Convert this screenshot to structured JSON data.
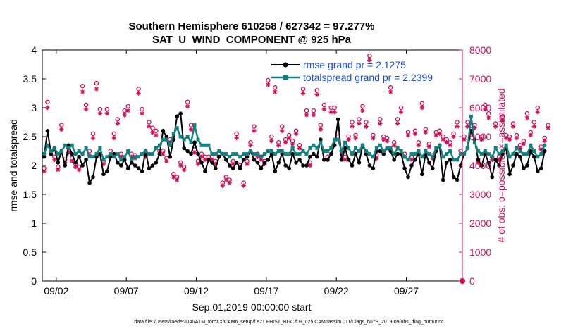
{
  "chart_data": {
    "type": "line",
    "title_line1": "Southern Hemisphere 610258 / 627342 = 97.277%",
    "title_line2": "SAT_U_WIND_COMPONENT @ 925 hPa",
    "xlabel": "Sep.01,2019 00:00:00 start",
    "ylabel_left": "rmse and totalspread",
    "ylabel_right": "# of obs: o=possible; ×=assimilated",
    "footnote": "data file: /Users/raeder/DAI/ATM_forcXX/CAM6_setup/f.e21.FHIST_BGC.f09_025.CAM6assim.011/Diags_NTrS_2019-09/obs_diag_output.nc",
    "x_ticks": [
      "09/02",
      "09/07",
      "09/12",
      "09/17",
      "09/22",
      "09/27"
    ],
    "x_tick_days": [
      2,
      7,
      12,
      17,
      22,
      27
    ],
    "xlim_days": [
      1,
      31
    ],
    "left_ylim": [
      0,
      4
    ],
    "left_ticks": [
      "0",
      "0.5",
      "1",
      "1.5",
      "2",
      "2.5",
      "3",
      "3.5",
      "4"
    ],
    "right_ylim": [
      0,
      8000
    ],
    "right_ticks": [
      "0",
      "1000",
      "2000",
      "3000",
      "4000",
      "5000",
      "6000",
      "7000",
      "8000"
    ],
    "colors": {
      "rmse": "#000000",
      "spread": "#118080",
      "obs": "#d0105a",
      "legend_text": "#1a4fd6"
    },
    "legend": [
      {
        "label": "rmse grand pr = 2.1275"
      },
      {
        "label": "totalspread grand pr = 2.2399"
      }
    ],
    "series": [
      {
        "name": "rmse",
        "x_start_day": 1.125,
        "x_step_days": 0.25,
        "values": [
          2.15,
          2.6,
          2.2,
          2.3,
          2.05,
          2.25,
          2.0,
          2.35,
          2.2,
          2.05,
          2.15,
          2.0,
          2.1,
          1.7,
          1.8,
          2.15,
          2.2,
          1.85,
          1.9,
          2.15,
          2.2,
          2.05,
          2.0,
          2.1,
          1.95,
          2.05,
          2.0,
          1.95,
          1.9,
          2.25,
          1.95,
          2.0,
          2.05,
          2.2,
          2.6,
          2.5,
          2.15,
          2.45,
          2.85,
          2.9,
          2.3,
          2.25,
          2.2,
          2.4,
          2.2,
          2.05,
          1.9,
          2.1,
          2.05,
          1.95,
          2.15,
          2.2,
          2.1,
          2.0,
          1.95,
          2.05,
          1.95,
          2.1,
          2.15,
          2.25,
          2.1,
          2.05,
          1.95,
          2.05,
          2.1,
          2.2,
          1.9,
          2.05,
          2.2,
          2.0,
          1.95,
          2.2,
          2.05,
          2.1,
          2.0,
          2.0,
          2.15,
          2.2,
          2.15,
          2.45,
          2.1,
          2.1,
          2.2,
          2.35,
          2.8,
          2.1,
          2.3,
          2.1,
          2.0,
          2.2,
          2.05,
          2.35,
          2.2,
          2.0,
          1.95,
          2.25,
          2.25,
          2.2,
          2.3,
          2.25,
          2.1,
          2.2,
          2.2,
          1.95,
          1.8,
          2.0,
          2.1,
          2.2,
          1.85,
          2.2,
          2.05,
          1.95,
          2.25,
          2.35,
          1.75,
          2.05,
          2.1,
          1.8,
          1.75,
          2.0,
          2.2,
          2.3,
          2.6,
          2.45,
          2.1,
          2.0,
          2.2,
          2.05,
          1.8,
          2.1,
          2.0,
          2.2,
          2.3,
          1.85,
          2.0,
          2.2,
          2.15,
          1.95,
          2.0,
          2.25,
          2.15,
          1.9,
          1.95,
          2.25
        ]
      },
      {
        "name": "totalspread",
        "x_start_day": 1.125,
        "x_step_days": 0.25,
        "values": [
          2.2,
          2.35,
          2.25,
          2.3,
          2.2,
          2.25,
          2.35,
          2.3,
          2.35,
          2.2,
          2.25,
          2.2,
          2.3,
          2.15,
          2.15,
          2.2,
          2.3,
          2.1,
          2.15,
          2.2,
          2.15,
          2.2,
          2.1,
          2.15,
          2.25,
          2.1,
          2.15,
          2.15,
          2.2,
          2.25,
          2.2,
          2.2,
          2.3,
          2.35,
          2.45,
          2.45,
          2.35,
          2.55,
          2.65,
          2.5,
          2.45,
          2.5,
          2.4,
          2.7,
          2.45,
          2.35,
          2.35,
          2.35,
          2.2,
          2.2,
          2.25,
          2.2,
          2.2,
          2.15,
          2.2,
          2.2,
          2.15,
          2.2,
          2.2,
          2.25,
          2.2,
          2.2,
          2.15,
          2.2,
          2.25,
          2.25,
          2.2,
          2.25,
          2.25,
          2.2,
          2.2,
          2.3,
          2.2,
          2.2,
          2.25,
          2.2,
          2.3,
          2.35,
          2.3,
          2.4,
          2.25,
          2.25,
          2.3,
          2.45,
          2.45,
          2.25,
          2.4,
          2.3,
          2.2,
          2.3,
          2.25,
          2.35,
          2.25,
          2.2,
          2.15,
          2.3,
          2.35,
          2.25,
          2.3,
          2.3,
          2.2,
          2.3,
          2.25,
          2.15,
          2.1,
          2.2,
          2.2,
          2.25,
          2.15,
          2.25,
          2.2,
          2.15,
          2.3,
          2.35,
          2.15,
          2.2,
          2.25,
          2.1,
          2.1,
          2.2,
          2.2,
          2.3,
          2.85,
          2.4,
          2.25,
          2.2,
          2.25,
          2.2,
          2.15,
          2.3,
          2.2,
          2.25,
          2.35,
          2.15,
          2.2,
          2.3,
          2.25,
          2.2,
          2.2,
          2.35,
          2.25,
          2.15,
          2.2,
          2.35
        ]
      },
      {
        "name": "obs_possible",
        "x_start_day": 1.125,
        "x_step_days": 0.25,
        "values": [
          3900,
          6200,
          4500,
          4300,
          3950,
          5400,
          4200,
          4600,
          4250,
          4050,
          3950,
          6750,
          6100,
          4500,
          5100,
          6850,
          5950,
          4150,
          5950,
          4500,
          5100,
          5600,
          4400,
          5900,
          6050,
          4400,
          4350,
          6650,
          5950,
          4400,
          5500,
          5300,
          5200,
          4500,
          4500,
          4250,
          4900,
          3700,
          3600,
          4100,
          3950,
          6200,
          5400,
          4550,
          4150,
          4400,
          4300,
          4300,
          4300,
          4150,
          4400,
          3400,
          3600,
          3500,
          4150,
          5100,
          4000,
          3400,
          4150,
          4800,
          5350,
          4400,
          4300,
          4150,
          6950,
          5000,
          6700,
          4800,
          5350,
          4900,
          5050,
          4850,
          5200,
          4700,
          6650,
          5900,
          4100,
          5900,
          6600,
          5400,
          6100,
          4300,
          6000,
          6000,
          5000,
          4500,
          4300,
          5000,
          5500,
          5050,
          5600,
          6050,
          5500,
          7800,
          5050,
          4350,
          5600,
          5000,
          4950,
          6700,
          4800,
          5600,
          6000,
          4400,
          5150,
          4300,
          5200,
          4800,
          6150,
          5250,
          4750,
          4350,
          5150,
          5200,
          5000,
          4900,
          4800,
          5100,
          5500,
          4500,
          5000,
          5500,
          5250,
          5400,
          4200,
          5000,
          6100,
          5800,
          4300,
          5450,
          4300,
          5700,
          5050,
          5000,
          5450,
          5050,
          4700,
          4850,
          5800,
          5150,
          5500,
          6000,
          4650,
          4950,
          5400
        ]
      },
      {
        "name": "obs_assimilated",
        "x_start_day": 1.125,
        "x_step_days": 0.25,
        "values": [
          3800,
          6000,
          4400,
          4200,
          3850,
          5250,
          4100,
          4450,
          4150,
          3950,
          3850,
          6550,
          5950,
          4350,
          4950,
          6650,
          5800,
          4050,
          5800,
          4350,
          4950,
          5450,
          4300,
          5750,
          5900,
          4300,
          4250,
          6500,
          5800,
          4300,
          5350,
          5150,
          5050,
          4400,
          4400,
          4150,
          4800,
          3600,
          3500,
          4000,
          3850,
          6050,
          5250,
          4450,
          4050,
          4300,
          4200,
          4200,
          4200,
          4050,
          4300,
          3300,
          3500,
          3400,
          4050,
          4950,
          3900,
          3300,
          4050,
          4700,
          5200,
          4300,
          4200,
          4050,
          6800,
          4850,
          6550,
          4700,
          5200,
          4800,
          4950,
          4750,
          5100,
          4600,
          6500,
          5750,
          4000,
          5750,
          6450,
          5250,
          5950,
          4200,
          5850,
          5850,
          4900,
          4400,
          4200,
          4900,
          5350,
          4950,
          5450,
          5900,
          5350,
          7650,
          4950,
          4250,
          5450,
          4900,
          4850,
          6550,
          4700,
          5450,
          5850,
          4300,
          5050,
          4200,
          5100,
          4700,
          6000,
          5150,
          4650,
          4250,
          5050,
          5100,
          4900,
          4800,
          4700,
          5000,
          5350,
          4400,
          4900,
          5350,
          5150,
          5300,
          4100,
          4900,
          5950,
          5650,
          4200,
          5350,
          4200,
          5550,
          4950,
          4900,
          5350,
          4950,
          4600,
          4750,
          5650,
          5050,
          5350,
          5850,
          4550,
          4850,
          5300
        ]
      }
    ],
    "extra_points": [
      {
        "series": "obs_possible",
        "day": 31.0,
        "value": 0
      },
      {
        "series": "obs_assimilated",
        "day": 31.0,
        "value": 0
      }
    ]
  }
}
